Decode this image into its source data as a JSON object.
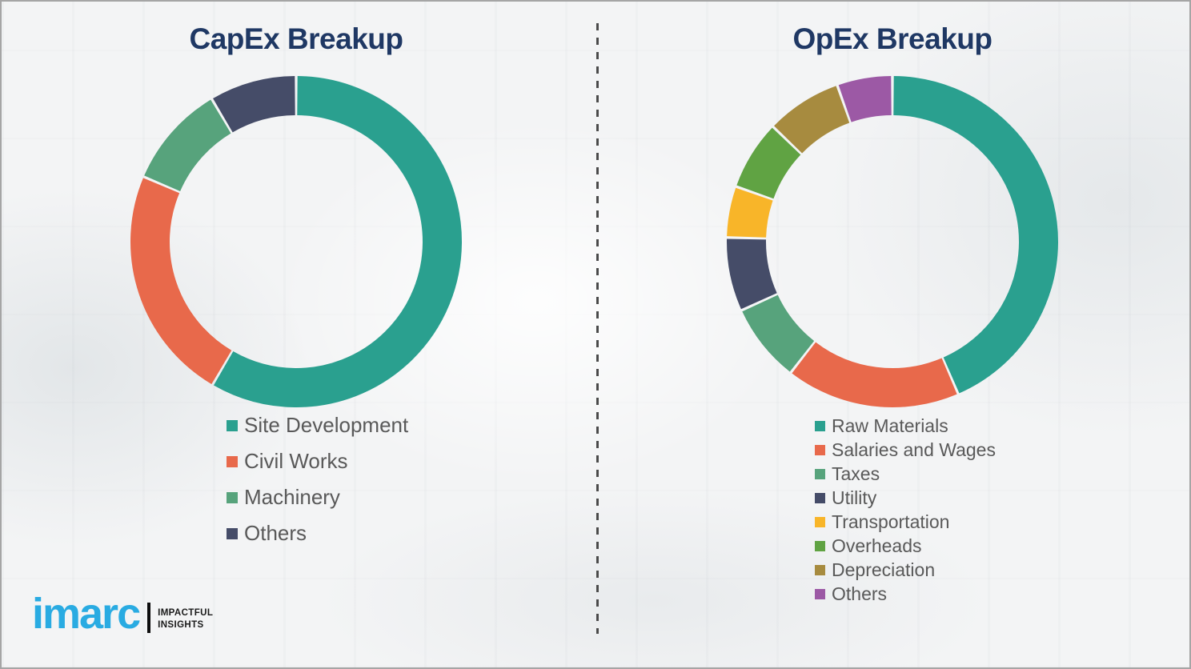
{
  "page": {
    "background_color": "#f3f4f5",
    "border_color": "#a5a5a5",
    "divider_color": "#4a4a4a",
    "legend_text_color": "#595959"
  },
  "logo": {
    "brand": "imarc",
    "brand_color": "#29abe2",
    "tagline_line1": "IMPACTFUL",
    "tagline_line2": "INSIGHTS"
  },
  "chart_data": [
    {
      "id": "capex",
      "type": "pie",
      "donut": true,
      "title": "CapEx Breakup",
      "title_color": "#1f3864",
      "start_angle_deg": 0,
      "direction": "clockwise",
      "legend_position": "below-left",
      "values_are_estimates_pct": true,
      "slices": [
        {
          "label": "Site Development",
          "value_pct": 58.4,
          "color": "#2aa08f"
        },
        {
          "label": "Civil Works",
          "value_pct": 23.0,
          "color": "#e8694b"
        },
        {
          "label": "Machinery",
          "value_pct": 10.1,
          "color": "#57a37c"
        },
        {
          "label": "Others",
          "value_pct": 8.5,
          "color": "#454c68"
        }
      ]
    },
    {
      "id": "opex",
      "type": "pie",
      "donut": true,
      "title": "OpEx Breakup",
      "title_color": "#1f3864",
      "start_angle_deg": 0,
      "direction": "clockwise",
      "legend_position": "below-left",
      "values_are_estimates_pct": true,
      "slices": [
        {
          "label": "Raw Materials",
          "value_pct": 43.5,
          "color": "#2aa08f"
        },
        {
          "label": "Salaries and Wages",
          "value_pct": 17.0,
          "color": "#e8694b"
        },
        {
          "label": "Taxes",
          "value_pct": 7.7,
          "color": "#57a37c"
        },
        {
          "label": "Utility",
          "value_pct": 7.2,
          "color": "#454c68"
        },
        {
          "label": "Transportation",
          "value_pct": 5.0,
          "color": "#f8b529"
        },
        {
          "label": "Overheads",
          "value_pct": 6.8,
          "color": "#60a343"
        },
        {
          "label": "Depreciation",
          "value_pct": 7.4,
          "color": "#a78b3f"
        },
        {
          "label": "Others",
          "value_pct": 5.4,
          "color": "#9c59a5"
        }
      ]
    }
  ]
}
